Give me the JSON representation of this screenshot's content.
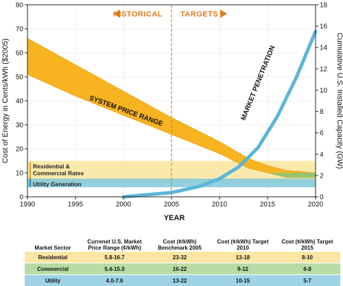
{
  "chart_data": {
    "type": "area",
    "xlabel": "YEAR",
    "ylabel_left": "Cost of Energy in Cents/kWh ($2005)",
    "ylabel_right": "Cumulative U.S. Installed Capacity (GW)",
    "xlim": [
      1990,
      2020
    ],
    "ylim_left": [
      0,
      80
    ],
    "ylim_right": [
      0,
      18
    ],
    "x_ticks": [
      "1990",
      "1995",
      "2000",
      "2005",
      "2010",
      "2015",
      "2020"
    ],
    "y_ticks_left": [
      "0",
      "10",
      "20",
      "30",
      "40",
      "50",
      "60",
      "70",
      "80"
    ],
    "y_ticks_right": [
      "0",
      "2",
      "4",
      "6",
      "8",
      "10",
      "12",
      "14",
      "16",
      "18"
    ],
    "grid": true,
    "divider_year": 2005,
    "phase_labels": {
      "historical": "HISTORICAL",
      "targets": "TARGETS"
    },
    "system_price_range": {
      "label": "SYSTEM PRICE RANGE",
      "x": [
        1990,
        1995,
        2000,
        2005,
        2010,
        2013,
        2015,
        2017,
        2020
      ],
      "high": [
        66,
        55,
        44,
        33,
        23,
        16,
        13,
        11,
        10
      ],
      "low": [
        51,
        42,
        34,
        26,
        18,
        12,
        10,
        8,
        8
      ]
    },
    "market_penetration": {
      "label": "MARKET PENETRATION",
      "x": [
        2000,
        2005,
        2008,
        2010,
        2012,
        2014,
        2016,
        2018,
        2020
      ],
      "y": [
        0,
        0.4,
        1.0,
        1.7,
        2.8,
        4.6,
        7.5,
        11.2,
        15.5
      ]
    },
    "rate_bands": [
      {
        "label": "Residential & Commercial Rates",
        "low": 5.8,
        "high": 15.0,
        "color": "#fbe8a8"
      },
      {
        "label": "Utility Generation",
        "low": 4.0,
        "high": 7.6,
        "color": "#7fc8dd"
      }
    ],
    "colors": {
      "system_price_range": "#f7b320",
      "market_penetration": "#5bb6d8",
      "divider": "#e07a1a",
      "commercial_band": "#8cc57a"
    }
  },
  "table": {
    "headers": [
      "Market Sector",
      "Currenet U.S. Market Price Range (¢/kWh)",
      "Cost (¢/kWh) Benchmark 2005",
      "Cost (¢/kWh) Target 2010",
      "Cost (¢/kWh) Target 2015"
    ],
    "rows": [
      {
        "sector": "Residential",
        "range": "5.8-16.7",
        "b2005": "23-32",
        "t2010": "13-18",
        "t2015": "8-10"
      },
      {
        "sector": "Commercial",
        "range": "5.4-15.0",
        "b2005": "16-22",
        "t2010": "9-12",
        "t2015": "6-8"
      },
      {
        "sector": "Utility",
        "range": "4.0-7.6",
        "b2005": "13-22",
        "t2010": "10-15",
        "t2015": "5-7"
      }
    ]
  }
}
